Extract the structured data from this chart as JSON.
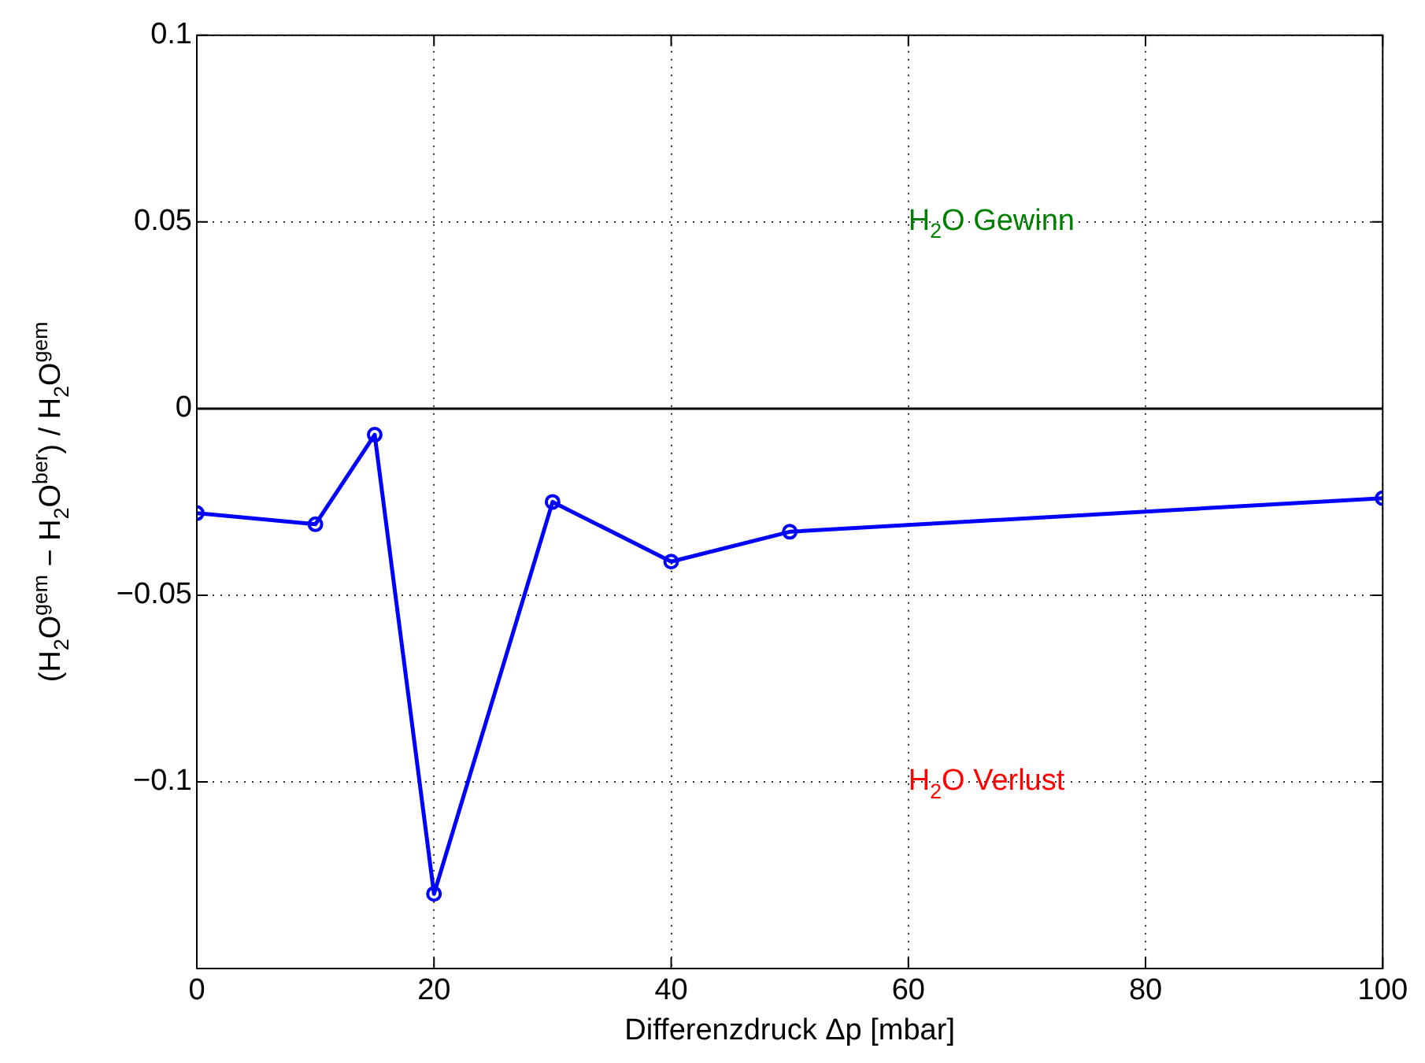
{
  "chart_data": {
    "type": "line",
    "xlabel": "Differenzdruck Δp [mbar]",
    "ylabel": "(H$_{2}$O$^{gem}$ − H$_{2}$O$^{ber}$) / H$_{2}$O$^{gem}$",
    "x": [
      0,
      10,
      15,
      20,
      30,
      40,
      50,
      100
    ],
    "series": [
      {
        "color": "#0000ff",
        "values": [
          -0.028,
          -0.031,
          -0.007,
          -0.13,
          -0.025,
          -0.041,
          -0.033,
          -0.024
        ]
      }
    ],
    "xlim": [
      0,
      100
    ],
    "xticks": [
      0,
      20,
      40,
      60,
      80,
      100
    ],
    "ylim": [
      -0.15,
      0.1
    ],
    "yticks": [
      {
        "value": -0.15,
        "label": null
      },
      {
        "value": -0.1,
        "label": "−0.1"
      },
      {
        "value": -0.05,
        "label": "−0.05"
      },
      0,
      0.05,
      0.1
    ],
    "ref_lines": [
      {
        "axis": "y",
        "value": 0,
        "color": "#000000"
      }
    ],
    "annotations": [
      "H$_{2}$O Gewinn",
      "H$_{2}$O Verlust"
    ],
    "grid": true,
    "legend": false,
    "marker": "circle",
    "line_style": "solid"
  }
}
